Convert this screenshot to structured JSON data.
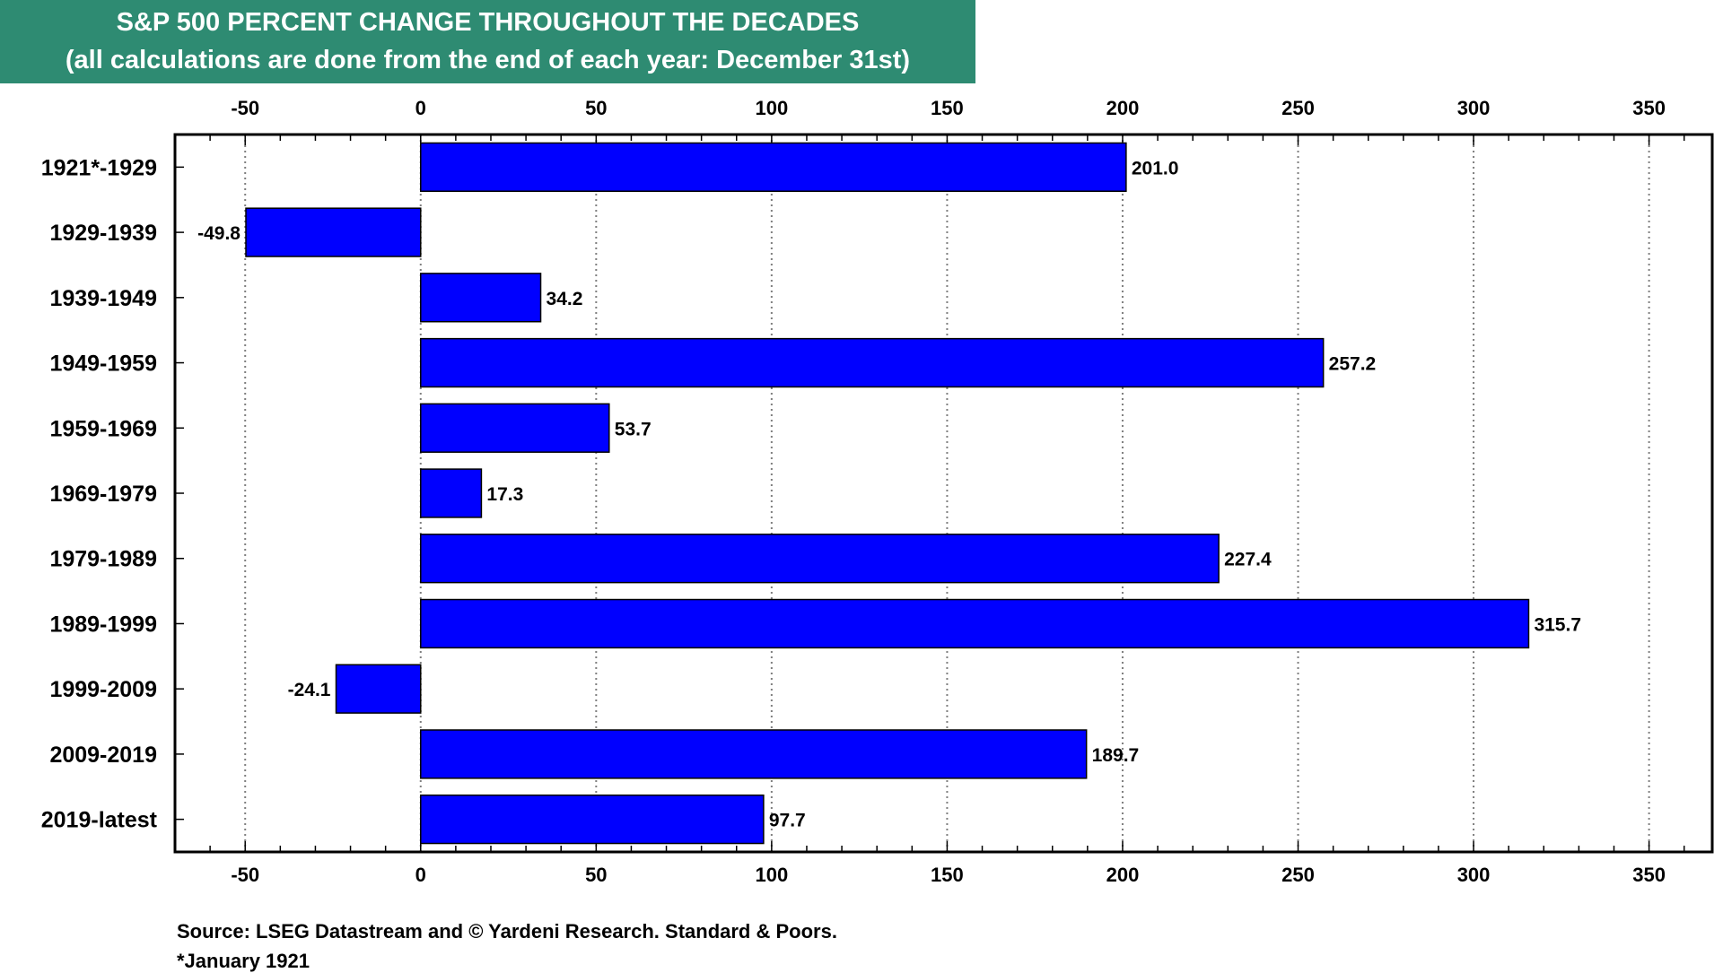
{
  "title": {
    "line1": "S&P 500 PERCENT CHANGE THROUGHOUT THE DECADES",
    "line2": "(all calculations are done from the end of each year: December 31st)"
  },
  "colors": {
    "title_bg": "#2e8b72",
    "bar": "#0000ff",
    "bar_stroke": "#000000"
  },
  "chart_data": {
    "type": "bar",
    "orientation": "horizontal",
    "categories": [
      "1921*-1929",
      "1929-1939",
      "1939-1949",
      "1949-1959",
      "1959-1969",
      "1969-1979",
      "1979-1989",
      "1989-1999",
      "1999-2009",
      "2009-2019",
      "2019-latest"
    ],
    "values": [
      201.0,
      -49.8,
      34.2,
      257.2,
      53.7,
      17.3,
      227.4,
      315.7,
      -24.1,
      189.7,
      97.7
    ],
    "value_labels": [
      "201.0",
      "-49.8",
      "34.2",
      "257.2",
      "53.7",
      "17.3",
      "227.4",
      "315.7",
      "-24.1",
      "189.7",
      "97.7"
    ],
    "xlim": [
      -70,
      368
    ],
    "xticks": [
      -50,
      0,
      50,
      100,
      150,
      200,
      250,
      300,
      350
    ],
    "xtick_labels": [
      "-50",
      "0",
      "50",
      "100",
      "150",
      "200",
      "250",
      "300",
      "350"
    ],
    "grid": "vertical dotted",
    "axis_labels_top_and_bottom": true
  },
  "footer": {
    "source": "Source: LSEG Datastream and © Yardeni Research. Standard & Poors.",
    "note": "*January 1921"
  }
}
